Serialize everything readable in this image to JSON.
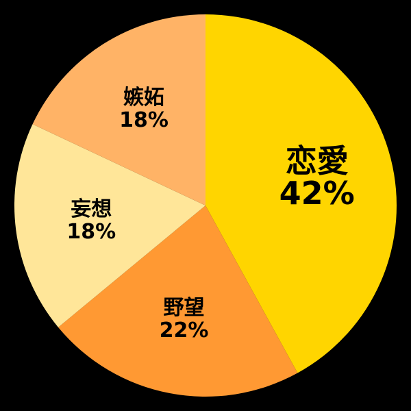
{
  "chart_data": {
    "type": "pie",
    "title": "",
    "categories": [
      "恋愛",
      "野望",
      "妄想",
      "嫉妬"
    ],
    "values": [
      42,
      22,
      18,
      18
    ],
    "percent_labels": [
      "42%",
      "22%",
      "18%",
      "18%"
    ],
    "colors": [
      "#FFD500",
      "#FF9933",
      "#FFE699",
      "#FFB366"
    ],
    "slice_label_color": "#000000",
    "background_color": "#000000",
    "layout_hints": {
      "start_angle_deg": 0,
      "direction": "clockwise",
      "labels_inside": true,
      "legend": "none",
      "largest_slice_label_emphasized": true
    }
  }
}
